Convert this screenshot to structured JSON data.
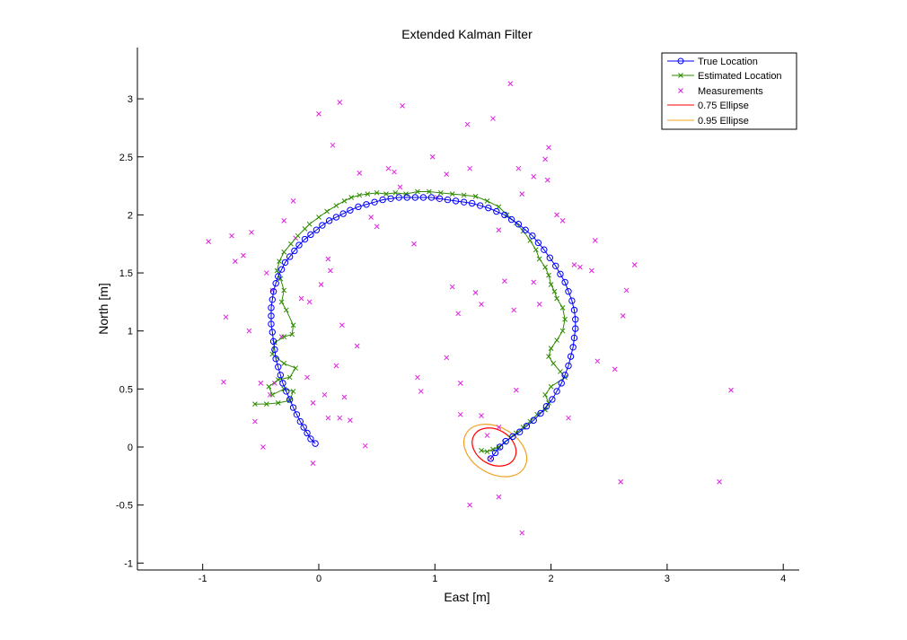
{
  "chart_data": {
    "type": "scatter",
    "title": "Extended Kalman Filter",
    "xlabel": "East [m]",
    "ylabel": "North [m]",
    "xlim": [
      -1.55,
      4.15
    ],
    "ylim": [
      -1.05,
      3.45
    ],
    "xticks": [
      -1,
      0,
      1,
      2,
      3,
      4
    ],
    "yticks": [
      -1,
      -0.5,
      0,
      0.5,
      1,
      1.5,
      2,
      2.5,
      3
    ],
    "xtick_labels": [
      "-1",
      "0",
      "1",
      "2",
      "3",
      "4"
    ],
    "ytick_labels": [
      "-1",
      "-0.5",
      "0",
      "0.5",
      "1",
      "1.5",
      "2",
      "2.5",
      "3"
    ],
    "grid": false,
    "legend_position": "upper right",
    "legend": [
      {
        "label": "True Location",
        "color": "#0000ff",
        "marker": "o",
        "line": "solid"
      },
      {
        "label": "Estimated Location",
        "color": "#2e8b00",
        "marker": "x",
        "line": "solid"
      },
      {
        "label": "Measurements",
        "color": "#e020e0",
        "marker": "x",
        "line": "none"
      },
      {
        "label": "0.75 Ellipse",
        "color": "#ff0000",
        "marker": "none",
        "line": "solid"
      },
      {
        "label": "0.95 Ellipse",
        "color": "#f0a020",
        "marker": "none",
        "line": "solid"
      }
    ],
    "series": [
      {
        "name": "True Location",
        "color": "#0000ff",
        "x": [
          -0.03,
          -0.07,
          -0.1,
          -0.13,
          -0.16,
          -0.19,
          -0.22,
          -0.25,
          -0.28,
          -0.31,
          -0.33,
          -0.35,
          -0.37,
          -0.38,
          -0.39,
          -0.4,
          -0.41,
          -0.41,
          -0.41,
          -0.4,
          -0.39,
          -0.37,
          -0.35,
          -0.32,
          -0.29,
          -0.25,
          -0.21,
          -0.17,
          -0.12,
          -0.07,
          -0.02,
          0.03,
          0.09,
          0.15,
          0.21,
          0.27,
          0.34,
          0.41,
          0.48,
          0.55,
          0.62,
          0.69,
          0.76,
          0.83,
          0.9,
          0.97,
          1.04,
          1.11,
          1.18,
          1.25,
          1.32,
          1.39,
          1.46,
          1.53,
          1.6,
          1.66,
          1.72,
          1.78,
          1.84,
          1.89,
          1.94,
          1.99,
          2.04,
          2.08,
          2.12,
          2.15,
          2.18,
          2.2,
          2.21,
          2.21,
          2.2,
          2.19,
          2.17,
          2.15,
          2.12,
          2.09,
          2.05,
          2.01,
          1.96,
          1.91,
          1.85,
          1.79,
          1.73,
          1.67,
          1.61,
          1.56,
          1.52,
          1.48
        ],
        "y": [
          0.03,
          0.07,
          0.12,
          0.17,
          0.22,
          0.28,
          0.34,
          0.41,
          0.48,
          0.55,
          0.62,
          0.69,
          0.76,
          0.84,
          0.91,
          0.99,
          1.06,
          1.13,
          1.2,
          1.27,
          1.34,
          1.41,
          1.47,
          1.53,
          1.59,
          1.64,
          1.69,
          1.74,
          1.79,
          1.83,
          1.87,
          1.91,
          1.95,
          1.98,
          2.01,
          2.04,
          2.07,
          2.09,
          2.11,
          2.13,
          2.14,
          2.15,
          2.15,
          2.15,
          2.15,
          2.15,
          2.14,
          2.13,
          2.12,
          2.11,
          2.1,
          2.08,
          2.06,
          2.03,
          2.0,
          1.96,
          1.92,
          1.87,
          1.82,
          1.76,
          1.7,
          1.63,
          1.56,
          1.49,
          1.42,
          1.34,
          1.26,
          1.18,
          1.1,
          1.02,
          0.94,
          0.86,
          0.78,
          0.7,
          0.62,
          0.55,
          0.48,
          0.41,
          0.35,
          0.29,
          0.23,
          0.18,
          0.13,
          0.09,
          0.05,
          0.0,
          -0.05,
          -0.1
        ]
      },
      {
        "name": "Estimated Location",
        "color": "#2e8b00",
        "x": [
          -0.55,
          -0.45,
          -0.35,
          -0.25,
          -0.22,
          -0.3,
          -0.4,
          -0.43,
          -0.35,
          -0.25,
          -0.2,
          -0.3,
          -0.4,
          -0.38,
          -0.3,
          -0.23,
          -0.22,
          -0.28,
          -0.32,
          -0.3,
          -0.33,
          -0.36,
          -0.34,
          -0.3,
          -0.24,
          -0.18,
          -0.12,
          -0.08,
          0.0,
          0.07,
          0.15,
          0.22,
          0.28,
          0.35,
          0.42,
          0.5,
          0.58,
          0.66,
          0.75,
          0.85,
          0.95,
          1.05,
          1.15,
          1.25,
          1.35,
          1.45,
          1.55,
          1.62,
          1.7,
          1.76,
          1.82,
          1.87,
          1.9,
          1.95,
          1.98,
          2.0,
          2.03,
          2.05,
          2.1,
          2.12,
          2.1,
          2.05,
          2.0,
          1.98,
          2.02,
          2.08,
          2.12,
          2.0,
          1.95,
          1.98,
          1.95,
          1.88,
          1.82,
          1.76,
          1.7,
          1.65,
          1.6,
          1.55,
          1.5,
          1.45,
          1.4
        ],
        "y": [
          0.37,
          0.37,
          0.38,
          0.4,
          0.48,
          0.5,
          0.45,
          0.52,
          0.58,
          0.6,
          0.68,
          0.72,
          0.8,
          0.9,
          0.95,
          0.97,
          1.05,
          1.18,
          1.25,
          1.35,
          1.45,
          1.52,
          1.6,
          1.68,
          1.75,
          1.82,
          1.88,
          1.92,
          1.98,
          2.03,
          2.08,
          2.12,
          2.15,
          2.17,
          2.18,
          2.19,
          2.18,
          2.19,
          2.18,
          2.2,
          2.2,
          2.19,
          2.18,
          2.17,
          2.16,
          2.12,
          2.07,
          2.0,
          1.93,
          1.86,
          1.78,
          1.7,
          1.62,
          1.55,
          1.48,
          1.4,
          1.34,
          1.28,
          1.2,
          1.1,
          1.0,
          0.92,
          0.85,
          0.78,
          0.72,
          0.65,
          0.6,
          0.52,
          0.45,
          0.38,
          0.32,
          0.28,
          0.22,
          0.17,
          0.12,
          0.08,
          0.04,
          0.0,
          -0.02,
          -0.04,
          -0.03
        ]
      },
      {
        "name": "Measurements",
        "color": "#e020e0",
        "x": [
          -0.95,
          -0.8,
          -0.72,
          -0.75,
          -0.82,
          -0.6,
          -0.48,
          -0.45,
          -0.55,
          -0.4,
          -0.5,
          -0.42,
          -0.3,
          -0.32,
          -0.2,
          -0.22,
          -0.15,
          -0.1,
          -0.08,
          -0.05,
          -0.05,
          0.0,
          0.05,
          0.08,
          0.1,
          0.15,
          0.18,
          0.2,
          0.22,
          0.35,
          0.33,
          0.4,
          0.45,
          0.5,
          0.6,
          0.65,
          0.7,
          0.72,
          0.82,
          0.85,
          0.88,
          0.98,
          1.02,
          1.1,
          1.1,
          1.15,
          1.2,
          1.22,
          1.28,
          1.3,
          1.3,
          1.35,
          1.4,
          1.4,
          1.45,
          1.5,
          1.55,
          1.55,
          1.6,
          1.65,
          1.68,
          1.7,
          1.72,
          1.75,
          1.75,
          1.85,
          1.85,
          1.9,
          1.95,
          1.97,
          1.98,
          2.05,
          2.1,
          2.15,
          2.2,
          2.25,
          2.35,
          2.38,
          2.4,
          2.55,
          2.6,
          2.62,
          2.65,
          2.72,
          3.45,
          3.55,
          -0.65,
          -0.58,
          -0.38,
          0.02,
          0.08,
          0.18,
          0.12,
          0.27,
          1.55,
          1.22,
          1.48
        ],
        "y": [
          1.77,
          1.12,
          1.6,
          1.82,
          0.56,
          1.0,
          0.0,
          1.5,
          0.22,
          1.35,
          0.55,
          0.45,
          1.95,
          0.95,
          1.8,
          2.12,
          1.28,
          0.6,
          1.25,
          0.38,
          -0.14,
          2.87,
          0.45,
          0.25,
          1.52,
          0.7,
          2.97,
          1.05,
          0.43,
          2.36,
          0.87,
          0.01,
          1.98,
          1.9,
          2.4,
          2.37,
          2.24,
          2.94,
          1.75,
          0.6,
          0.48,
          2.5,
          2.15,
          2.35,
          0.77,
          1.38,
          1.15,
          0.28,
          2.78,
          2.4,
          -0.5,
          1.33,
          1.23,
          0.27,
          0.1,
          2.83,
          1.87,
          -0.43,
          1.43,
          3.13,
          1.18,
          0.49,
          2.4,
          2.18,
          -0.74,
          2.33,
          1.42,
          1.23,
          2.48,
          2.3,
          2.58,
          2.0,
          1.95,
          0.25,
          1.57,
          1.55,
          1.52,
          1.78,
          0.74,
          0.67,
          -0.3,
          1.13,
          1.35,
          1.57,
          -0.3,
          0.49,
          1.65,
          1.85,
          0.55,
          1.4,
          1.62,
          0.25,
          2.6,
          0.23,
          0.17,
          0.55,
          -0.1
        ]
      }
    ],
    "ellipses": [
      {
        "name": "0.75 Ellipse",
        "color": "#ff0000",
        "center": [
          1.51,
          0.0
        ],
        "rx": 0.2,
        "ry": 0.15,
        "angle_deg": 30
      },
      {
        "name": "0.95 Ellipse",
        "color": "#f0a020",
        "center": [
          1.52,
          -0.03
        ],
        "rx": 0.29,
        "ry": 0.2,
        "angle_deg": 30
      }
    ]
  }
}
